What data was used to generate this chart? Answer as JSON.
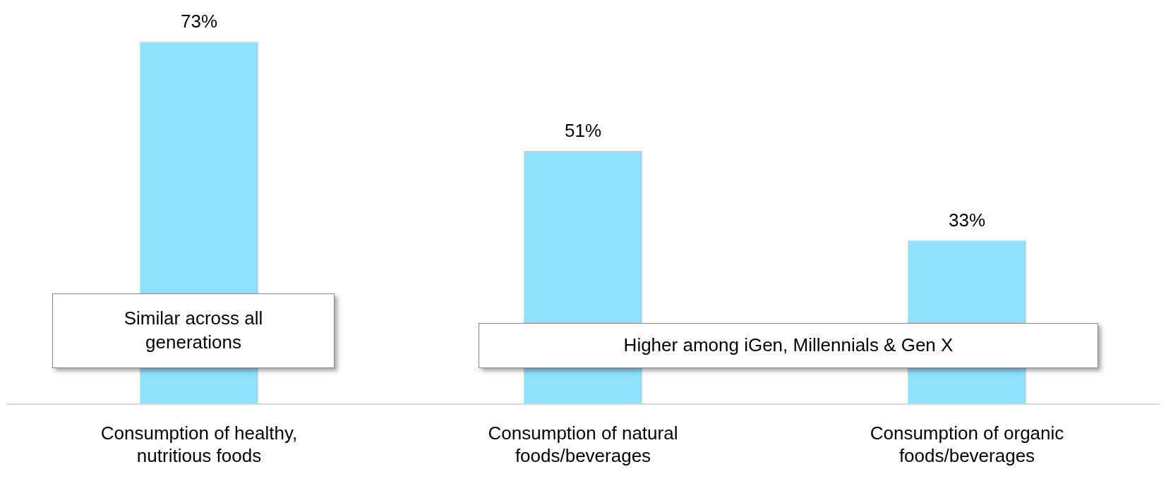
{
  "chart_data": {
    "type": "bar",
    "categories": [
      "Consumption of healthy, nutritious foods",
      "Consumption of natural foods/beverages",
      "Consumption of organic foods/beverages"
    ],
    "values": [
      73,
      51,
      33
    ],
    "value_labels": [
      "73%",
      "51%",
      "33%"
    ],
    "color": "#8fe1fd",
    "grid": false,
    "legend": false,
    "tick_labels": "x",
    "annotations": [
      "Similar across all generations",
      "Higher among iGen, Millennials & Gen X"
    ]
  }
}
